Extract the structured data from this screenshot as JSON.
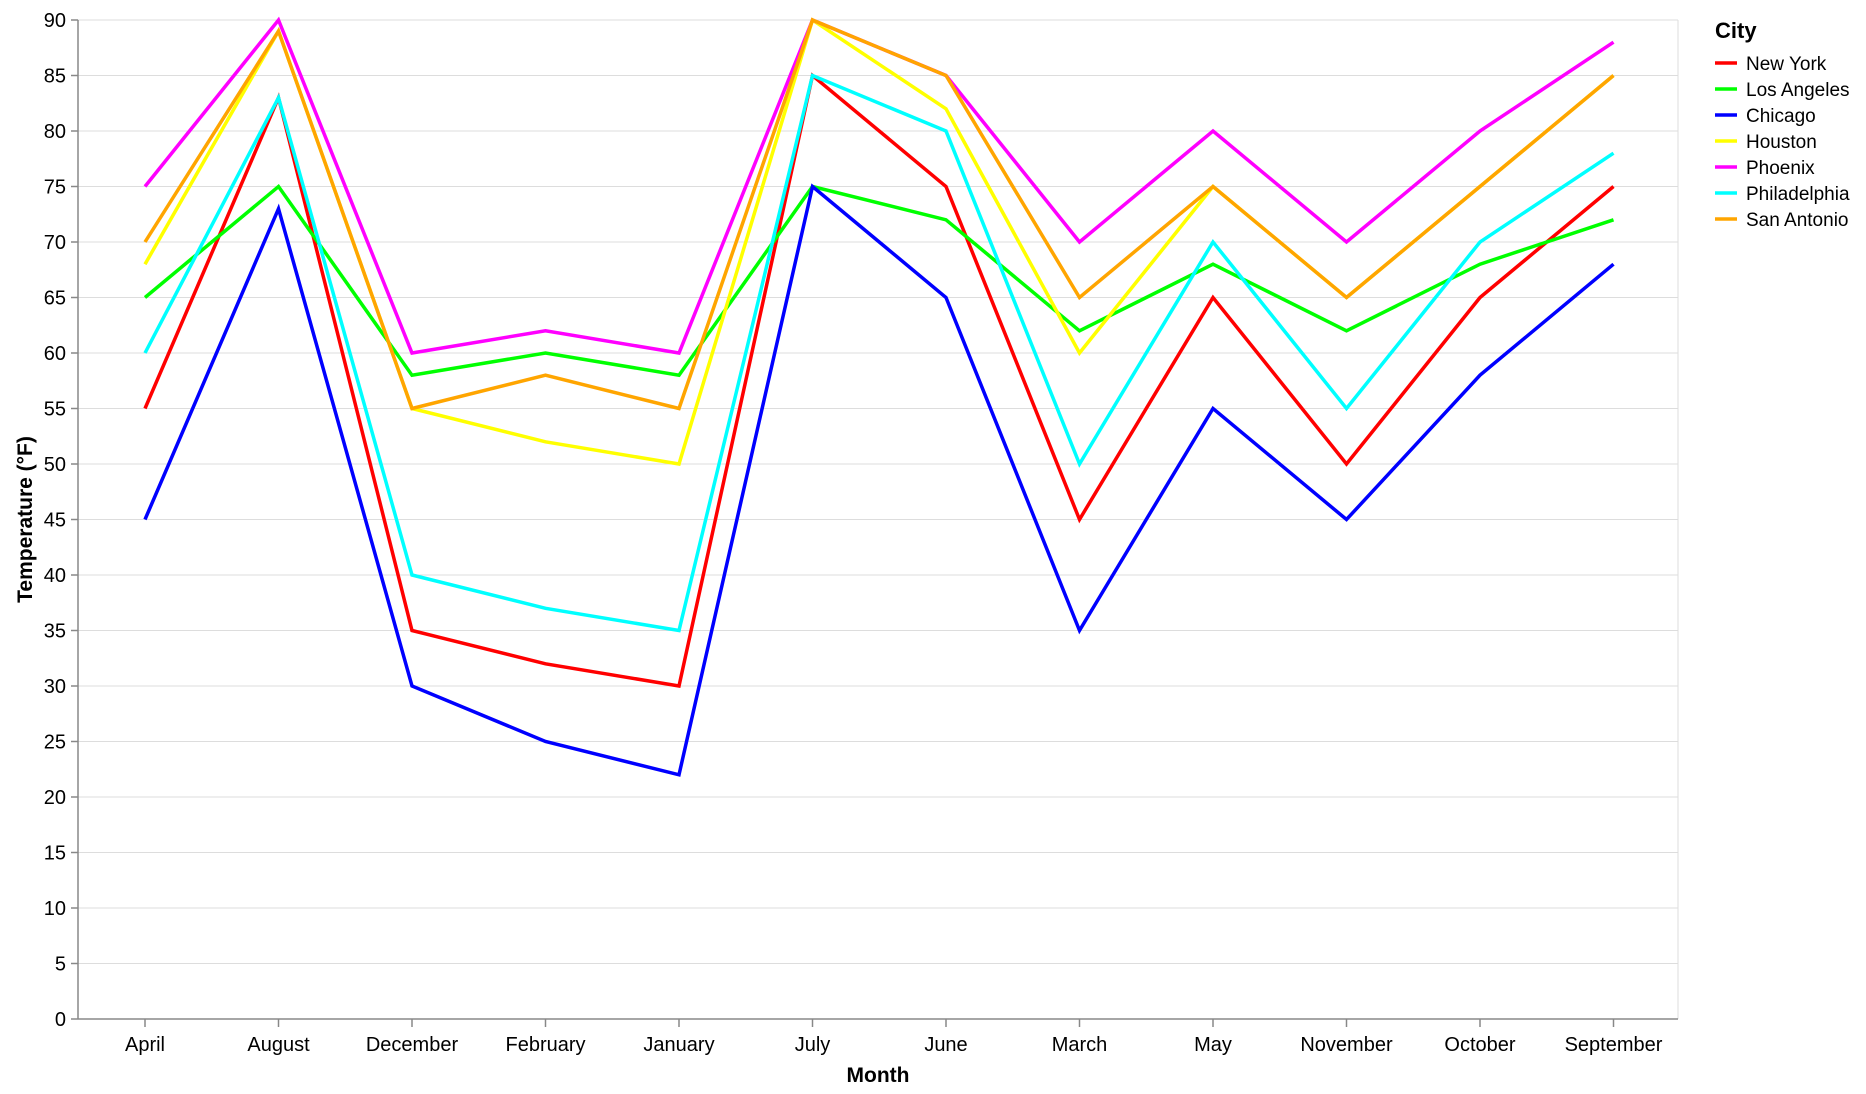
{
  "chart_data": {
    "type": "line",
    "xlabel": "Month",
    "ylabel": "Temperature (°F)",
    "ylim": [
      0,
      90
    ],
    "y_ticks": [
      0,
      5,
      10,
      15,
      20,
      25,
      30,
      35,
      40,
      45,
      50,
      55,
      60,
      65,
      70,
      75,
      80,
      85,
      90
    ],
    "grid": "horizontal",
    "legend_title": "City",
    "legend_position": "right",
    "categories": [
      "April",
      "August",
      "December",
      "February",
      "January",
      "July",
      "June",
      "March",
      "May",
      "November",
      "October",
      "September"
    ],
    "series": [
      {
        "name": "New York",
        "color": "#ff0000",
        "values": [
          55,
          83,
          35,
          32,
          30,
          85,
          75,
          45,
          65,
          50,
          65,
          75
        ]
      },
      {
        "name": "Los Angeles",
        "color": "#00ff00",
        "values": [
          65,
          75,
          58,
          60,
          58,
          75,
          72,
          62,
          68,
          62,
          68,
          72
        ]
      },
      {
        "name": "Chicago",
        "color": "#0000ff",
        "values": [
          45,
          73,
          30,
          25,
          22,
          75,
          65,
          35,
          55,
          45,
          58,
          68
        ]
      },
      {
        "name": "Houston",
        "color": "#ffff00",
        "values": [
          68,
          89,
          55,
          52,
          50,
          90,
          82,
          60,
          75,
          65,
          75,
          85
        ]
      },
      {
        "name": "Phoenix",
        "color": "#ff00ff",
        "values": [
          75,
          90,
          60,
          62,
          60,
          90,
          85,
          70,
          80,
          70,
          80,
          88
        ]
      },
      {
        "name": "Philadelphia",
        "color": "#00ffff",
        "values": [
          60,
          83,
          40,
          37,
          35,
          85,
          80,
          50,
          70,
          55,
          70,
          78
        ]
      },
      {
        "name": "San Antonio",
        "color": "#ffa500",
        "values": [
          70,
          89,
          55,
          58,
          55,
          90,
          85,
          65,
          75,
          65,
          75,
          85
        ]
      }
    ]
  }
}
